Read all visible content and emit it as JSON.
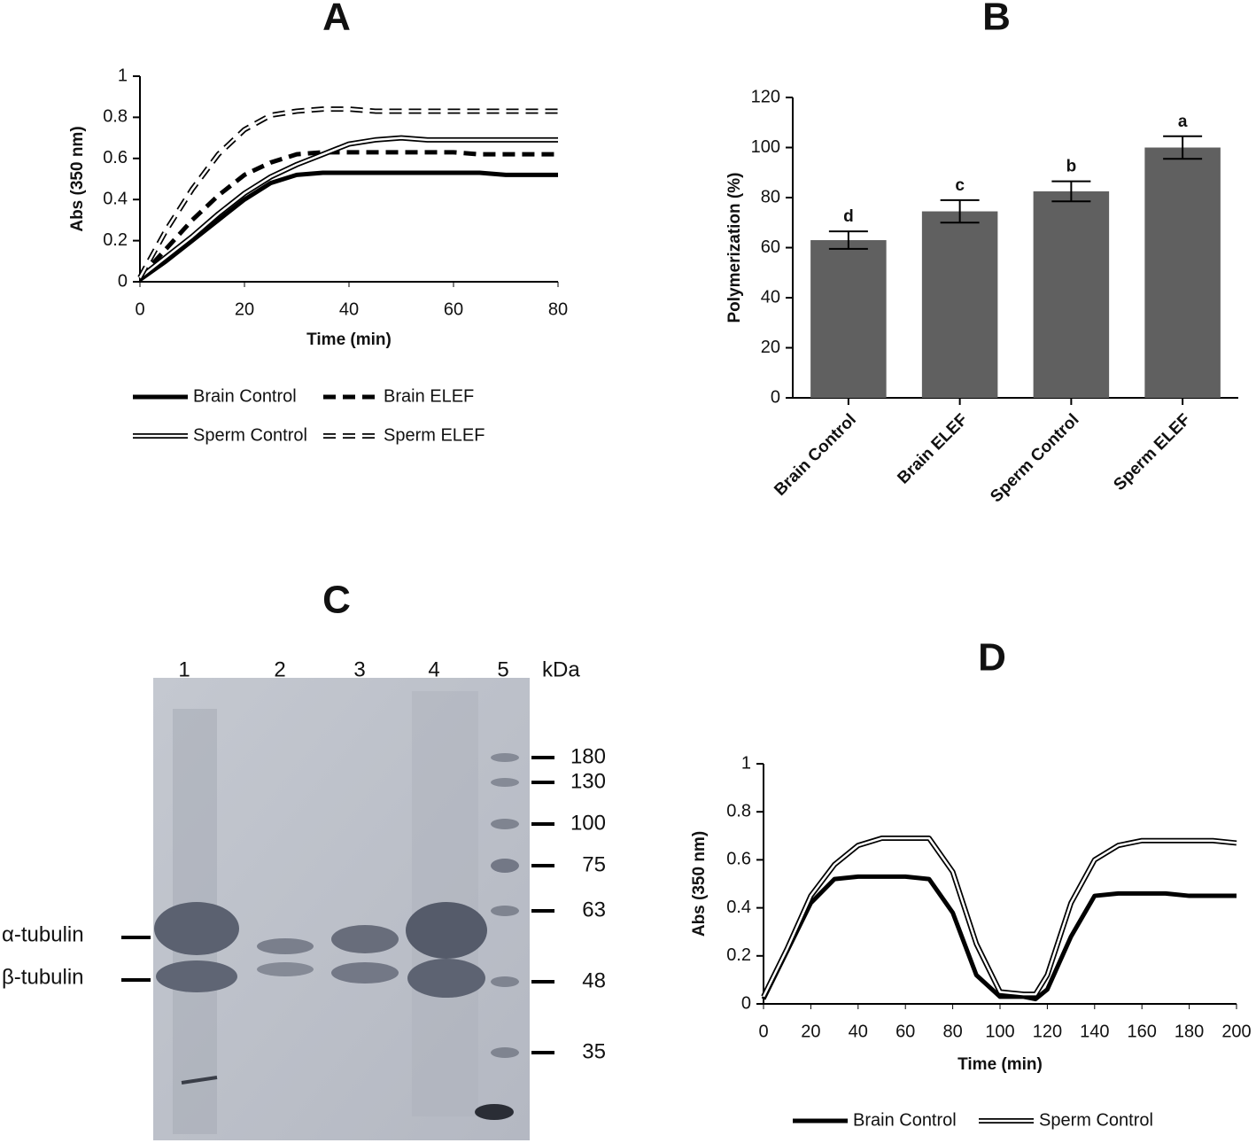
{
  "chart_data": [
    {
      "type": "line",
      "title": "A",
      "x_label": "Time (min)",
      "y_label": "Abs (350 nm)",
      "x": [
        0,
        5,
        10,
        15,
        20,
        25,
        30,
        35,
        40,
        45,
        50,
        55,
        60,
        65,
        70,
        75,
        80
      ],
      "series": [
        {
          "name": "Brain Control",
          "color": "#000000",
          "dashed": false,
          "hollow": false,
          "values": [
            0.01,
            0.1,
            0.2,
            0.3,
            0.4,
            0.48,
            0.52,
            0.53,
            0.53,
            0.53,
            0.53,
            0.53,
            0.53,
            0.53,
            0.52,
            0.52,
            0.52
          ]
        },
        {
          "name": "Brain ELEF",
          "color": "#000000",
          "dashed": true,
          "hollow": false,
          "values": [
            0.02,
            0.16,
            0.3,
            0.42,
            0.52,
            0.58,
            0.62,
            0.63,
            0.63,
            0.63,
            0.63,
            0.63,
            0.63,
            0.62,
            0.62,
            0.62,
            0.62
          ]
        },
        {
          "name": "Sperm Control",
          "color": "#000000",
          "dashed": false,
          "hollow": true,
          "values": [
            0.02,
            0.12,
            0.22,
            0.33,
            0.43,
            0.51,
            0.57,
            0.62,
            0.67,
            0.69,
            0.7,
            0.69,
            0.69,
            0.69,
            0.69,
            0.69,
            0.69
          ]
        },
        {
          "name": "Sperm ELEF",
          "color": "#000000",
          "dashed": true,
          "hollow": true,
          "values": [
            0.02,
            0.25,
            0.45,
            0.62,
            0.74,
            0.81,
            0.83,
            0.84,
            0.84,
            0.83,
            0.83,
            0.83,
            0.83,
            0.83,
            0.83,
            0.83,
            0.83
          ]
        }
      ],
      "xlim": [
        0,
        80
      ],
      "xticks": [
        0,
        20,
        40,
        60,
        80
      ],
      "ylim": [
        0,
        1
      ],
      "yticks": [
        0,
        0.2,
        0.4,
        0.6,
        0.8,
        1
      ],
      "legend": "bottom"
    },
    {
      "type": "bar",
      "title": "B",
      "y_label": "Polymerization (%)",
      "categories": [
        "Brain Control",
        "Brain ELEF",
        "Sperm Control",
        "Sperm ELEF"
      ],
      "values": [
        63,
        74.5,
        82.5,
        100
      ],
      "errors": [
        3.5,
        4.5,
        4,
        4.5
      ],
      "annotations": [
        "d",
        "c",
        "b",
        "a"
      ],
      "color": "#606060",
      "ylim": [
        0,
        120
      ],
      "yticks": [
        0,
        20,
        40,
        60,
        80,
        100,
        120
      ]
    },
    {
      "type": "line",
      "title": "D",
      "x_label": "Time (min)",
      "y_label": "Abs (350 nm)",
      "x": [
        0,
        10,
        20,
        30,
        40,
        50,
        60,
        70,
        80,
        90,
        100,
        110,
        115,
        120,
        130,
        140,
        150,
        160,
        170,
        180,
        190,
        200
      ],
      "series": [
        {
          "name": "Brain Control",
          "color": "#000000",
          "dashed": false,
          "hollow": false,
          "values": [
            0.02,
            0.22,
            0.42,
            0.52,
            0.53,
            0.53,
            0.53,
            0.52,
            0.38,
            0.12,
            0.03,
            0.03,
            0.02,
            0.06,
            0.28,
            0.45,
            0.46,
            0.46,
            0.46,
            0.45,
            0.45,
            0.45
          ]
        },
        {
          "name": "Sperm Control",
          "color": "#000000",
          "dashed": false,
          "hollow": true,
          "values": [
            0.03,
            0.23,
            0.45,
            0.58,
            0.66,
            0.69,
            0.69,
            0.69,
            0.55,
            0.25,
            0.05,
            0.04,
            0.04,
            0.12,
            0.42,
            0.6,
            0.66,
            0.68,
            0.68,
            0.68,
            0.68,
            0.67
          ]
        }
      ],
      "xlim": [
        0,
        200
      ],
      "xticks": [
        0,
        20,
        40,
        60,
        80,
        100,
        120,
        140,
        160,
        180,
        200
      ],
      "ylim": [
        0,
        1
      ],
      "yticks": [
        0,
        0.2,
        0.4,
        0.6,
        0.8,
        1
      ],
      "legend": "bottom"
    }
  ],
  "gel": {
    "title": "C",
    "lanes": [
      "1",
      "2",
      "3",
      "4",
      "5"
    ],
    "unit": "kDa",
    "markers": [
      "180",
      "130",
      "100",
      "75",
      "63",
      "48",
      "35"
    ],
    "labels": [
      "α-tubulin",
      "β-tubulin"
    ]
  }
}
